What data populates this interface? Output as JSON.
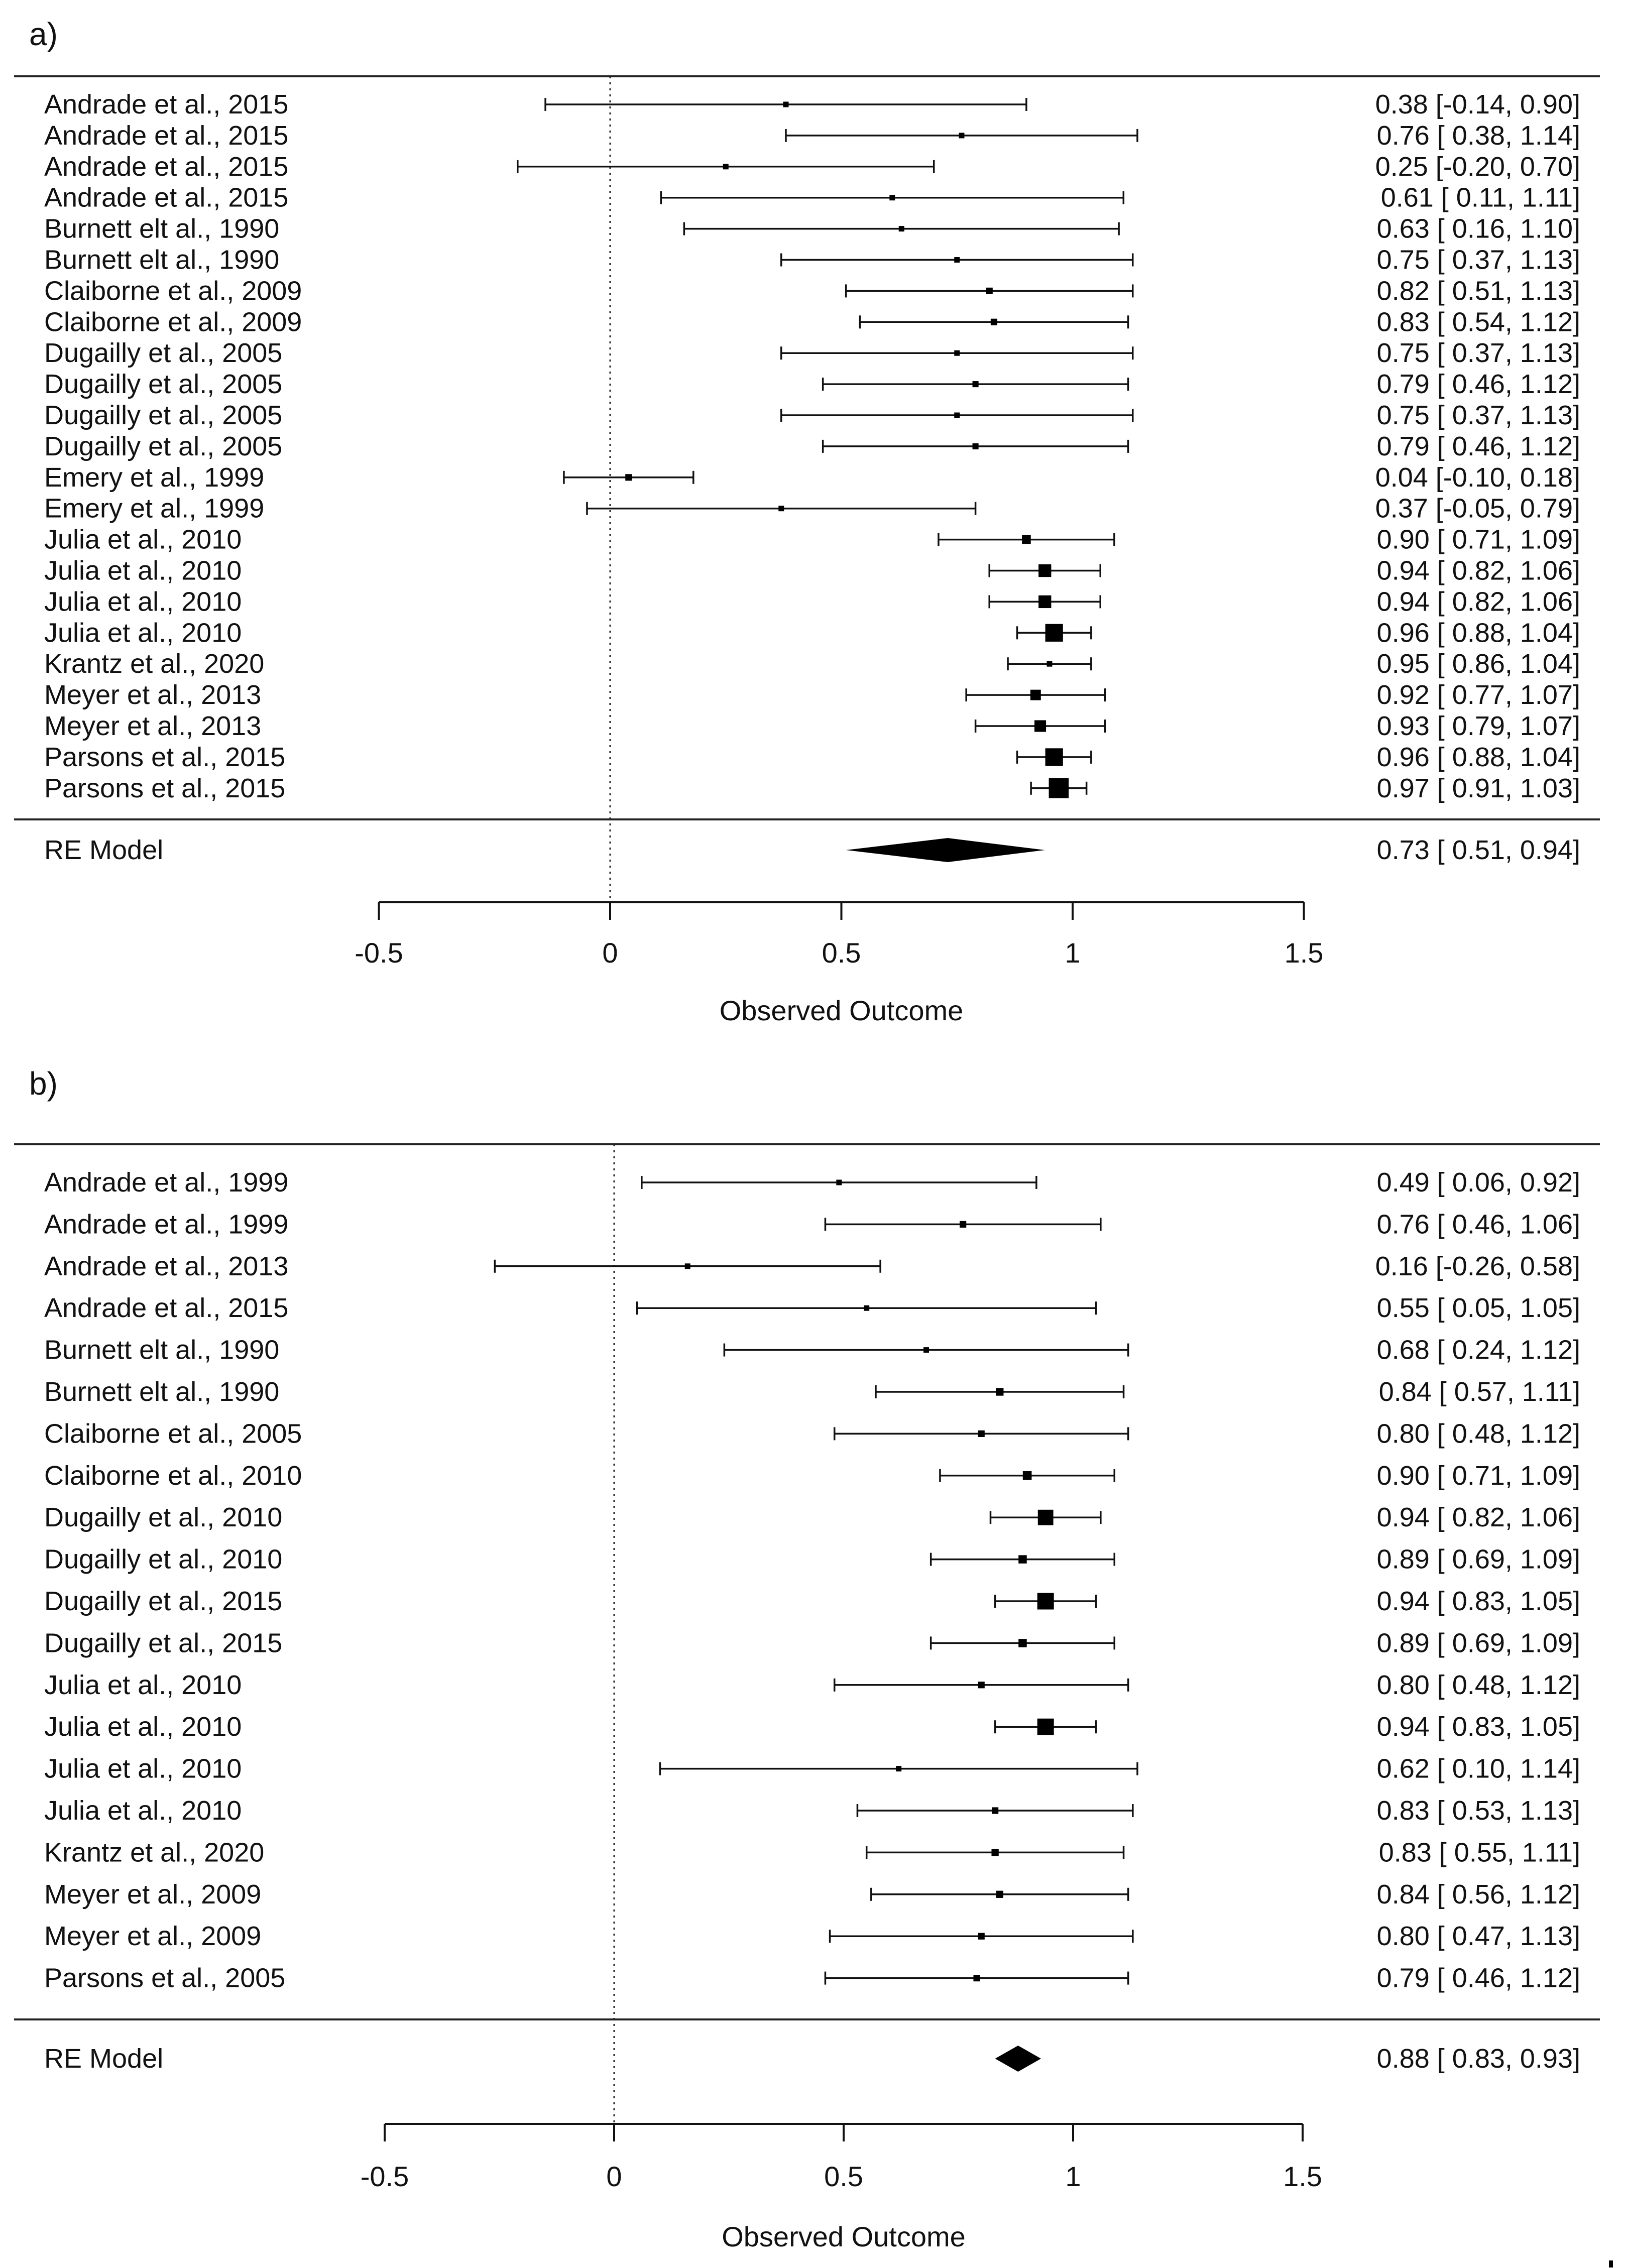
{
  "chart_data": [
    {
      "type": "forest",
      "panel_label": "a)",
      "xlabel": "Observed Outcome",
      "xlim": [
        -0.5,
        1.5
      ],
      "ticks": [
        "-0.5",
        "0",
        "0.5",
        "1",
        "1.5"
      ],
      "reference_line": 0,
      "studies": [
        {
          "label": "Andrade et al., 2015",
          "est": 0.38,
          "lo": -0.14,
          "hi": 0.9,
          "weight": 1,
          "text": "0.38 [-0.14, 0.90]"
        },
        {
          "label": "Andrade et al., 2015",
          "est": 0.76,
          "lo": 0.38,
          "hi": 1.14,
          "weight": 1,
          "text": "0.76 [ 0.38, 1.14]"
        },
        {
          "label": "Andrade et al., 2015",
          "est": 0.25,
          "lo": -0.2,
          "hi": 0.7,
          "weight": 1,
          "text": "0.25 [-0.20, 0.70]"
        },
        {
          "label": "Andrade et al., 2015",
          "est": 0.61,
          "lo": 0.11,
          "hi": 1.11,
          "weight": 1,
          "text": "0.61 [ 0.11, 1.11]"
        },
        {
          "label": "Burnett elt al., 1990",
          "est": 0.63,
          "lo": 0.16,
          "hi": 1.1,
          "weight": 1,
          "text": "0.63 [ 0.16, 1.10]"
        },
        {
          "label": "Burnett elt al., 1990",
          "est": 0.75,
          "lo": 0.37,
          "hi": 1.13,
          "weight": 1,
          "text": "0.75 [ 0.37, 1.13]"
        },
        {
          "label": "Claiborne et al., 2009",
          "est": 0.82,
          "lo": 0.51,
          "hi": 1.13,
          "weight": 1.2,
          "text": "0.82 [ 0.51, 1.13]"
        },
        {
          "label": "Claiborne et al., 2009",
          "est": 0.83,
          "lo": 0.54,
          "hi": 1.12,
          "weight": 1.2,
          "text": "0.83 [ 0.54, 1.12]"
        },
        {
          "label": "Dugailly et al., 2005",
          "est": 0.75,
          "lo": 0.37,
          "hi": 1.13,
          "weight": 1,
          "text": "0.75 [ 0.37, 1.13]"
        },
        {
          "label": "Dugailly et al., 2005",
          "est": 0.79,
          "lo": 0.46,
          "hi": 1.12,
          "weight": 1.1,
          "text": "0.79 [ 0.46, 1.12]"
        },
        {
          "label": "Dugailly et al., 2005",
          "est": 0.75,
          "lo": 0.37,
          "hi": 1.13,
          "weight": 1,
          "text": "0.75 [ 0.37, 1.13]"
        },
        {
          "label": "Dugailly et al., 2005",
          "est": 0.79,
          "lo": 0.46,
          "hi": 1.12,
          "weight": 1.1,
          "text": "0.79 [ 0.46, 1.12]"
        },
        {
          "label": "Emery  et al., 1999",
          "est": 0.04,
          "lo": -0.1,
          "hi": 0.18,
          "weight": 1.2,
          "text": "0.04 [-0.10, 0.18]"
        },
        {
          "label": "Emery  et al., 1999",
          "est": 0.37,
          "lo": -0.05,
          "hi": 0.79,
          "weight": 1,
          "text": "0.37 [-0.05, 0.79]"
        },
        {
          "label": "Julia et al., 2010",
          "est": 0.9,
          "lo": 0.71,
          "hi": 1.09,
          "weight": 1.6,
          "text": "0.90 [ 0.71, 1.09]"
        },
        {
          "label": "Julia et al., 2010",
          "est": 0.94,
          "lo": 0.82,
          "hi": 1.06,
          "weight": 2.3,
          "text": "0.94 [ 0.82, 1.06]"
        },
        {
          "label": "Julia et al., 2010",
          "est": 0.94,
          "lo": 0.82,
          "hi": 1.06,
          "weight": 2.3,
          "text": "0.94 [ 0.82, 1.06]"
        },
        {
          "label": "Julia et al., 2010",
          "est": 0.96,
          "lo": 0.88,
          "hi": 1.04,
          "weight": 3.2,
          "text": "0.96 [ 0.88, 1.04]"
        },
        {
          "label": "Krantz et al., 2020",
          "est": 0.95,
          "lo": 0.86,
          "hi": 1.04,
          "weight": 1,
          "text": "0.95 [ 0.86, 1.04]"
        },
        {
          "label": "Meyer et al., 2013",
          "est": 0.92,
          "lo": 0.77,
          "hi": 1.07,
          "weight": 1.9,
          "text": "0.92 [ 0.77, 1.07]"
        },
        {
          "label": "Meyer et al., 2013",
          "est": 0.93,
          "lo": 0.79,
          "hi": 1.07,
          "weight": 2.1,
          "text": "0.93 [ 0.79, 1.07]"
        },
        {
          "label": "Parsons et al., 2015",
          "est": 0.96,
          "lo": 0.88,
          "hi": 1.04,
          "weight": 3.2,
          "text": "0.96 [ 0.88, 1.04]"
        },
        {
          "label": "Parsons et al., 2015",
          "est": 0.97,
          "lo": 0.91,
          "hi": 1.03,
          "weight": 3.6,
          "text": "0.97 [ 0.91, 1.03]"
        }
      ],
      "summary": {
        "label": "RE Model",
        "est": 0.73,
        "lo": 0.51,
        "hi": 0.94,
        "text": "0.73 [ 0.51, 0.94]"
      }
    },
    {
      "type": "forest",
      "panel_label": "b)",
      "xlabel": "Observed Outcome",
      "xlim": [
        -0.5,
        1.5
      ],
      "ticks": [
        "-0.5",
        "0",
        "0.5",
        "1",
        "1.5"
      ],
      "reference_line": 0,
      "studies": [
        {
          "label": "Andrade et al., 1999",
          "est": 0.49,
          "lo": 0.06,
          "hi": 0.92,
          "weight": 1,
          "text": "0.49 [ 0.06, 0.92]"
        },
        {
          "label": "Andrade et al., 1999",
          "est": 0.76,
          "lo": 0.46,
          "hi": 1.06,
          "weight": 1.2,
          "text": "0.76 [ 0.46, 1.06]"
        },
        {
          "label": "Andrade et al., 2013",
          "est": 0.16,
          "lo": -0.26,
          "hi": 0.58,
          "weight": 1,
          "text": "0.16 [-0.26, 0.58]"
        },
        {
          "label": "Andrade et al., 2015",
          "est": 0.55,
          "lo": 0.05,
          "hi": 1.05,
          "weight": 1,
          "text": "0.55 [ 0.05, 1.05]"
        },
        {
          "label": "Burnett elt al., 1990",
          "est": 0.68,
          "lo": 0.24,
          "hi": 1.12,
          "weight": 1,
          "text": "0.68 [ 0.24, 1.12]"
        },
        {
          "label": "Burnett elt al., 1990",
          "est": 0.84,
          "lo": 0.57,
          "hi": 1.11,
          "weight": 1.4,
          "text": "0.84 [ 0.57, 1.11]"
        },
        {
          "label": "Claiborne et al., 2005",
          "est": 0.8,
          "lo": 0.48,
          "hi": 1.12,
          "weight": 1.2,
          "text": "0.80 [ 0.48, 1.12]"
        },
        {
          "label": "Claiborne et al., 2010",
          "est": 0.9,
          "lo": 0.71,
          "hi": 1.09,
          "weight": 1.6,
          "text": "0.90 [ 0.71, 1.09]"
        },
        {
          "label": "Dugailly et al., 2010",
          "est": 0.94,
          "lo": 0.82,
          "hi": 1.06,
          "weight": 2.8,
          "text": "0.94 [ 0.82, 1.06]"
        },
        {
          "label": "Dugailly et al., 2010",
          "est": 0.89,
          "lo": 0.69,
          "hi": 1.09,
          "weight": 1.5,
          "text": "0.89 [ 0.69, 1.09]"
        },
        {
          "label": "Dugailly et al., 2015",
          "est": 0.94,
          "lo": 0.83,
          "hi": 1.05,
          "weight": 3,
          "text": "0.94 [ 0.83, 1.05]"
        },
        {
          "label": "Dugailly et al., 2015",
          "est": 0.89,
          "lo": 0.69,
          "hi": 1.09,
          "weight": 1.5,
          "text": "0.89 [ 0.69, 1.09]"
        },
        {
          "label": "Julia et al., 2010",
          "est": 0.8,
          "lo": 0.48,
          "hi": 1.12,
          "weight": 1.2,
          "text": "0.80 [ 0.48, 1.12]"
        },
        {
          "label": "Julia et al., 2010",
          "est": 0.94,
          "lo": 0.83,
          "hi": 1.05,
          "weight": 3,
          "text": "0.94 [ 0.83, 1.05]"
        },
        {
          "label": "Julia et al., 2010",
          "est": 0.62,
          "lo": 0.1,
          "hi": 1.14,
          "weight": 1,
          "text": "0.62 [ 0.10, 1.14]"
        },
        {
          "label": "Julia et al., 2010",
          "est": 0.83,
          "lo": 0.53,
          "hi": 1.13,
          "weight": 1.2,
          "text": "0.83 [ 0.53, 1.13]"
        },
        {
          "label": "Krantz et al., 2020",
          "est": 0.83,
          "lo": 0.55,
          "hi": 1.11,
          "weight": 1.3,
          "text": "0.83 [ 0.55, 1.11]"
        },
        {
          "label": "Meyer et al., 2009",
          "est": 0.84,
          "lo": 0.56,
          "hi": 1.12,
          "weight": 1.3,
          "text": "0.84 [ 0.56, 1.12]"
        },
        {
          "label": "Meyer et al., 2009",
          "est": 0.8,
          "lo": 0.47,
          "hi": 1.13,
          "weight": 1.2,
          "text": "0.80 [ 0.47, 1.13]"
        },
        {
          "label": "Parsons et al., 2005",
          "est": 0.79,
          "lo": 0.46,
          "hi": 1.12,
          "weight": 1.2,
          "text": "0.79 [ 0.46, 1.12]"
        }
      ],
      "summary": {
        "label": "RE Model",
        "est": 0.88,
        "lo": 0.83,
        "hi": 0.93,
        "text": "0.88 [ 0.83, 0.93]"
      }
    }
  ]
}
